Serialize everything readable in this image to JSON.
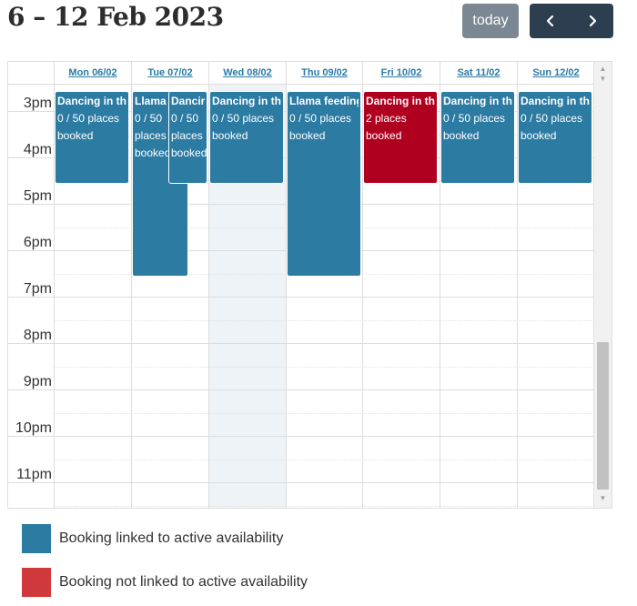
{
  "header": {
    "title": "6 – 12 Feb 2023",
    "today_label": "today",
    "prev_icon": "chevron-left-icon",
    "next_icon": "chevron-right-icon"
  },
  "colors": {
    "active": "#2b7ba3",
    "inactive": "#b0001f",
    "legend_inactive": "#d0393b",
    "today_bg": "#eef3f8",
    "nav_bg": "#2c3e50",
    "today_btn_bg": "#7b8793"
  },
  "days": [
    {
      "label": "Mon 06/02"
    },
    {
      "label": "Tue 07/02"
    },
    {
      "label": "Wed 08/02"
    },
    {
      "label": "Thu 09/02"
    },
    {
      "label": "Fri 10/02"
    },
    {
      "label": "Sat 11/02"
    },
    {
      "label": "Sun 12/02"
    }
  ],
  "times": [
    "3pm",
    "4pm",
    "5pm",
    "6pm",
    "7pm",
    "8pm",
    "9pm",
    "10pm",
    "11pm"
  ],
  "events": [
    {
      "title": "Dancing in th",
      "text": "0 / 50 places booked",
      "status": "active"
    },
    {
      "title": "Llama",
      "text": "0 / 50 places booked",
      "status": "active"
    },
    {
      "title": "Dancir",
      "text": "0 / 50 places booked",
      "status": "active"
    },
    {
      "title": "Dancing in th",
      "text": "0 / 50 places booked",
      "status": "active"
    },
    {
      "title": "Llama feeding",
      "text": "0 / 50 places booked",
      "status": "active"
    },
    {
      "title": "Dancing in th",
      "text": "2 places booked",
      "status": "inactive"
    },
    {
      "title": "Dancing in th",
      "text": "0 / 50 places booked",
      "status": "active"
    },
    {
      "title": "Dancing in th",
      "text": "0 / 50 places booked",
      "status": "active"
    }
  ],
  "legend": [
    {
      "label": "Booking linked to active availability",
      "color": "#2b7ba3"
    },
    {
      "label": "Booking not linked to active availability",
      "color": "#d0393b"
    }
  ]
}
